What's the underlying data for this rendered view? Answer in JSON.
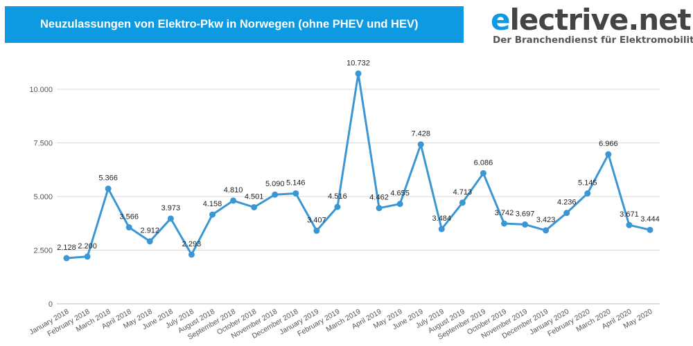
{
  "header": {
    "title": "Neuzulassungen von Elektro-Pkw in Norwegen (ohne PHEV und HEV)"
  },
  "logo": {
    "first_letter": "e",
    "rest": "lectrive.net",
    "tagline": "Der Branchendienst für Elektromobilität"
  },
  "colors": {
    "accent": "#0e9ae0",
    "series": "#3b97d3",
    "grid": "#d9d9d9"
  },
  "chart_data": {
    "type": "line",
    "title": "Neuzulassungen von Elektro-Pkw in Norwegen (ohne PHEV und HEV)",
    "xlabel": "",
    "ylabel": "",
    "ylim": [
      0,
      12000
    ],
    "yticks": [
      0,
      2500,
      5000,
      7500,
      10000
    ],
    "ytick_labels": [
      "0",
      "2.500",
      "5.000",
      "7.500",
      "10.000"
    ],
    "grid": true,
    "legend": "none",
    "categories": [
      "January 2018",
      "February 2018",
      "March 2018",
      "April 2018",
      "May 2018",
      "June 2018",
      "July 2018",
      "August 2018",
      "September 2018",
      "October 2018",
      "November 2018",
      "December 2018",
      "January 2019",
      "February 2019",
      "March 2019",
      "April 2019",
      "May 2019",
      "June 2019",
      "July 2019",
      "August 2019",
      "September 2019",
      "October 2019",
      "November 2019",
      "December 2019",
      "January 2020",
      "February 2020",
      "March 2020",
      "April 2020",
      "May 2020"
    ],
    "values": [
      2128,
      2200,
      5366,
      3566,
      2912,
      3973,
      2293,
      4158,
      4810,
      4501,
      5090,
      5146,
      3407,
      4516,
      10732,
      4462,
      4655,
      7428,
      3484,
      4713,
      6086,
      3742,
      3697,
      3423,
      4236,
      5145,
      6966,
      3671,
      3444
    ],
    "data_labels": [
      "2.128",
      "2.200",
      "5.366",
      "3.566",
      "2.912",
      "3.973",
      "2.293",
      "4.158",
      "4.810",
      "4.501",
      "5.090",
      "5.146",
      "3.407",
      "4.516",
      "10.732",
      "4.462",
      "4.655",
      "7.428",
      "3.484",
      "4.713",
      "6.086",
      "3.742",
      "3.697",
      "3.423",
      "4.236",
      "5.145",
      "6.966",
      "3.671",
      "3.444"
    ]
  }
}
